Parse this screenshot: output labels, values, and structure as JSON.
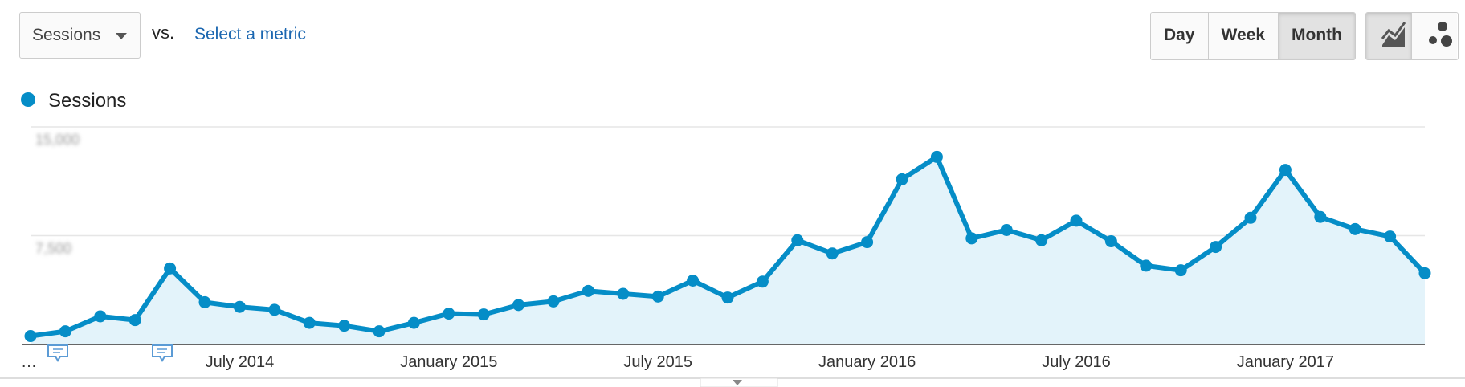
{
  "controls": {
    "metric": "Sessions",
    "vs": "vs.",
    "select": "Select a metric",
    "periods": [
      "Day",
      "Week",
      "Month"
    ]
  },
  "chart_data": {
    "type": "line",
    "categories": [
      "…",
      null,
      null,
      null,
      null,
      null,
      "July 2014",
      null,
      null,
      null,
      null,
      null,
      "January 2015",
      null,
      null,
      null,
      null,
      null,
      "July 2015",
      null,
      null,
      null,
      null,
      null,
      "January 2016",
      null,
      null,
      null,
      null,
      null,
      "July 2016",
      null,
      null,
      null,
      null,
      null,
      "January 2017",
      null,
      null,
      null,
      null
    ],
    "series": [
      {
        "name": "Sessions",
        "color": "#058dc7",
        "values": [
          580,
          905,
          1940,
          1680,
          5240,
          2910,
          2590,
          2390,
          1490,
          1290,
          905,
          1490,
          2130,
          2070,
          2720,
          2970,
          3690,
          3490,
          3300,
          4400,
          3230,
          4330,
          7180,
          6270,
          7050,
          11380,
          12930,
          7310,
          7890,
          7180,
          8530,
          7110,
          5430,
          5110,
          6720,
          8730,
          12030,
          8790,
          7950,
          7440,
          4910
        ]
      }
    ],
    "ylim": [
      0,
      15000
    ],
    "yticks": [
      {
        "value": 7500,
        "label": "7,500"
      },
      {
        "value": 15000,
        "label": "15,000"
      }
    ],
    "grid": true
  }
}
